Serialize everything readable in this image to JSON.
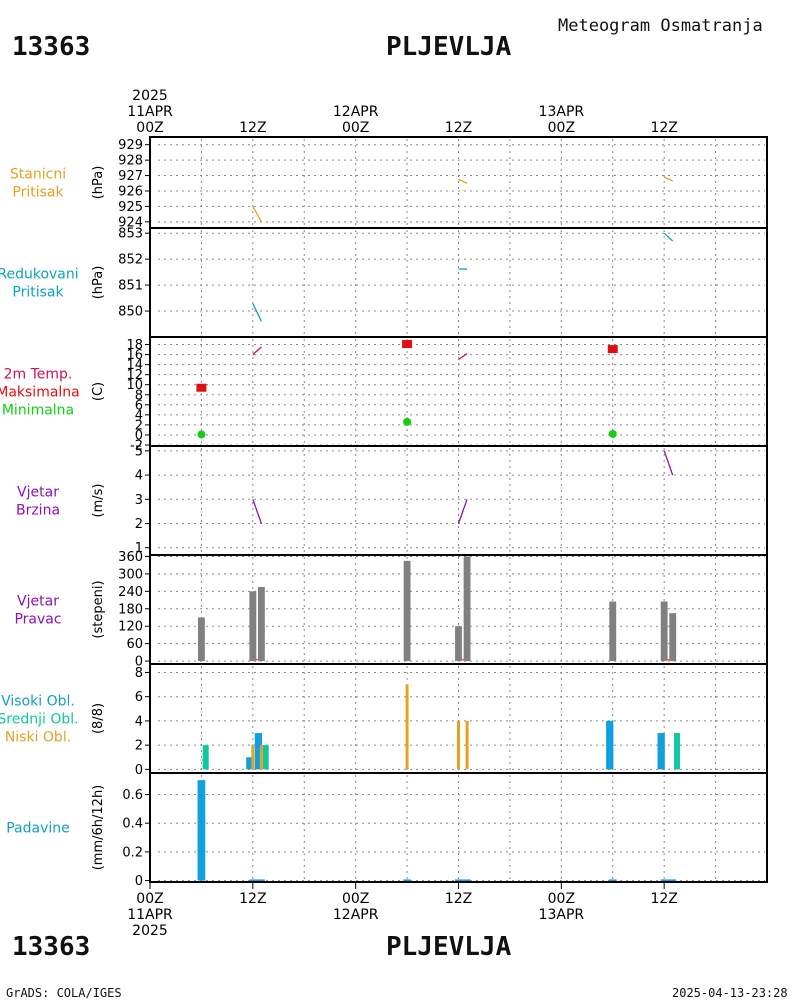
{
  "header": {
    "station_id": "13363",
    "station_name": "PLJEVLJA",
    "product": "Meteogram Osmatranja",
    "footer_left": "GrADS: COLA/IGES",
    "footer_right": "2025-04-13-23:28"
  },
  "colors": {
    "orange": "#e8a020",
    "cyan": "#10a0c0",
    "crimson": "#d01050",
    "red": "#e01010",
    "green": "#10d010",
    "purple": "#9010b0",
    "gray": "#808080",
    "blue": "#10a0e0",
    "teal": "#10c8a0",
    "cloud_orange": "#e8a020"
  },
  "time_axis": {
    "start_hour": 0,
    "end_hour": 72,
    "top_labels": [
      {
        "hour": 0,
        "lines": [
          "2025",
          "11APR",
          "00Z"
        ]
      },
      {
        "hour": 12,
        "lines": [
          "12Z"
        ]
      },
      {
        "hour": 24,
        "lines": [
          "12APR",
          "00Z"
        ]
      },
      {
        "hour": 36,
        "lines": [
          "12Z"
        ]
      },
      {
        "hour": 48,
        "lines": [
          "13APR",
          "00Z"
        ]
      },
      {
        "hour": 60,
        "lines": [
          "12Z"
        ]
      }
    ],
    "bottom_labels": [
      {
        "hour": 0,
        "lines": [
          "00Z",
          "11APR",
          "2025"
        ]
      },
      {
        "hour": 12,
        "lines": [
          "12Z"
        ]
      },
      {
        "hour": 24,
        "lines": [
          "00Z",
          "12APR"
        ]
      },
      {
        "hour": 36,
        "lines": [
          "12Z"
        ]
      },
      {
        "hour": 48,
        "lines": [
          "00Z",
          "13APR"
        ]
      },
      {
        "hour": 60,
        "lines": [
          "12Z"
        ]
      }
    ]
  },
  "chart_data": [
    {
      "id": "stanicni-pritisak",
      "type": "line",
      "left_labels": [
        {
          "text": "Stanicni",
          "color": "#e8a020"
        },
        {
          "text": "Pritisak",
          "color": "#e8a020"
        }
      ],
      "ylabel": "(hPa)",
      "ylim": [
        923.6,
        929.5
      ],
      "yticks": [
        924,
        925,
        926,
        927,
        928,
        929
      ],
      "series": [
        {
          "color": "#e8a020",
          "segments": [
            [
              [
                12,
                925.0
              ],
              [
                13,
                924.0
              ]
            ],
            [
              [
                36,
                926.75
              ],
              [
                37,
                926.5
              ]
            ],
            [
              [
                60,
                926.9
              ],
              [
                61,
                926.65
              ]
            ]
          ]
        }
      ]
    },
    {
      "id": "redukovani-pritisak",
      "type": "line",
      "left_labels": [
        {
          "text": "Redukovani",
          "color": "#10a0c0"
        },
        {
          "text": "Pritisak",
          "color": "#10a0c0"
        }
      ],
      "ylabel": "(hPa)",
      "ylim": [
        849.0,
        853.2
      ],
      "yticks": [
        850,
        851,
        852,
        853
      ],
      "series": [
        {
          "color": "#10a0c0",
          "segments": [
            [
              [
                12,
                850.3
              ],
              [
                13,
                849.6
              ]
            ],
            [
              [
                36,
                851.62
              ],
              [
                37,
                851.62
              ]
            ],
            [
              [
                60,
                853.0
              ],
              [
                61,
                852.7
              ]
            ]
          ]
        }
      ]
    },
    {
      "id": "temperatura",
      "type": "line",
      "left_labels": [
        {
          "text": "2m Temp.",
          "color": "#d01050"
        },
        {
          "text": "Maksimalna",
          "color": "#e01010"
        },
        {
          "text": "Minimalna",
          "color": "#10d010"
        }
      ],
      "ylabel": "(C)",
      "ylim": [
        -2.2,
        19.5
      ],
      "yticks": [
        -2,
        0,
        2,
        4,
        6,
        8,
        10,
        12,
        14,
        16,
        18
      ],
      "ytick_labels": [
        "-2",
        "0",
        "2",
        "4",
        "6",
        "8",
        "10",
        "12",
        "14",
        "16",
        "18"
      ],
      "series": [
        {
          "name": "2m Temp.",
          "color": "#d01050",
          "segments": [
            [
              [
                12,
                16.0
              ],
              [
                13,
                17.5
              ]
            ],
            [
              [
                36,
                15.0
              ],
              [
                37,
                16.2
              ]
            ]
          ]
        }
      ],
      "maxima": {
        "color": "#e01010",
        "points": [
          [
            6,
            9.4
          ],
          [
            30,
            18.1
          ],
          [
            54,
            17.1
          ]
        ]
      },
      "minima": {
        "color": "#10d010",
        "points": [
          [
            6,
            0.1
          ],
          [
            30,
            2.6
          ],
          [
            54,
            0.2
          ]
        ]
      }
    },
    {
      "id": "vjetar-brzina",
      "type": "line",
      "left_labels": [
        {
          "text": "Vjetar",
          "color": "#9010b0"
        },
        {
          "text": "Brzina",
          "color": "#9010b0"
        }
      ],
      "ylabel": "(m/s)",
      "ylim": [
        0.7,
        5.2
      ],
      "yticks": [
        1,
        2,
        3,
        4,
        5
      ],
      "series": [
        {
          "color": "#9010b0",
          "segments": [
            [
              [
                12,
                3.0
              ],
              [
                13,
                2.0
              ]
            ],
            [
              [
                36,
                2.0
              ],
              [
                37,
                3.0
              ]
            ],
            [
              [
                60,
                5.0
              ],
              [
                61,
                4.0
              ]
            ]
          ]
        }
      ]
    },
    {
      "id": "vjetar-pravac",
      "type": "bar",
      "left_labels": [
        {
          "text": "Vjetar",
          "color": "#9010b0"
        },
        {
          "text": "Pravac",
          "color": "#9010b0"
        }
      ],
      "ylabel": "(stepeni)",
      "ylim": [
        -10,
        365
      ],
      "yticks": [
        0,
        60,
        120,
        180,
        240,
        300,
        360
      ],
      "bar_color": "#808080",
      "bars": [
        {
          "hour": 6,
          "value": 150
        },
        {
          "hour": 12,
          "value": 240
        },
        {
          "hour": 13,
          "value": 255
        },
        {
          "hour": 30,
          "value": 345
        },
        {
          "hour": 36,
          "value": 120
        },
        {
          "hour": 37,
          "value": 360
        },
        {
          "hour": 54,
          "value": 205
        },
        {
          "hour": 60,
          "value": 205
        },
        {
          "hour": 61,
          "value": 165
        }
      ],
      "speed_marks": {
        "color": "#e06060",
        "hours": [
          12.5,
          36.5,
          60.5
        ],
        "value": 5
      }
    },
    {
      "id": "oblacnost",
      "type": "bar",
      "left_labels": [
        {
          "text": "Visoki Obl.",
          "color": "#10a0c0"
        },
        {
          "text": "Srednji Obl.",
          "color": "#10c8a0"
        },
        {
          "text": "Niski Obl.",
          "color": "#e8a020"
        }
      ],
      "ylabel": "(8/8)",
      "ylim": [
        -0.3,
        8.7
      ],
      "yticks": [
        0,
        2,
        4,
        6,
        8
      ],
      "series": [
        {
          "name": "Visoki Obl.",
          "color": "#10a0e0",
          "offset": -0.35,
          "width": 0.85,
          "points": [
            [
              12,
              1
            ],
            [
              13,
              3
            ],
            [
              54,
              4
            ],
            [
              60,
              3
            ]
          ]
        },
        {
          "name": "Srednji Obl.",
          "color": "#10c8a0",
          "offset": 0.5,
          "width": 0.7,
          "points": [
            [
              6,
              2
            ],
            [
              13,
              2
            ],
            [
              61,
              3
            ]
          ]
        },
        {
          "name": "Niski Obl.",
          "color": "#e8a020",
          "offset": 0.0,
          "width": 0.35,
          "points": [
            [
              12,
              2
            ],
            [
              13,
              2
            ],
            [
              30,
              7
            ],
            [
              36,
              4
            ],
            [
              37,
              4
            ]
          ]
        }
      ]
    },
    {
      "id": "padavine",
      "type": "bar",
      "left_labels": [
        {
          "text": "Padavine",
          "color": "#10a0c0"
        }
      ],
      "ylabel": "(mm/6h/12h)",
      "ylim": [
        -0.01,
        0.75
      ],
      "yticks": [
        0,
        0.2,
        0.4,
        0.6
      ],
      "ytick_labels": [
        "0",
        "0.2",
        "0.4",
        "0.6"
      ],
      "bar_color": "#10a0e0",
      "bars": [
        {
          "hour": 6,
          "value": 0.7,
          "width": 0.9
        },
        {
          "hour": 12.5,
          "value": 0.008,
          "width": 1.8
        },
        {
          "hour": 30,
          "value": 0.008,
          "width": 0.9
        },
        {
          "hour": 36.5,
          "value": 0.008,
          "width": 1.8
        },
        {
          "hour": 54,
          "value": 0.008,
          "width": 0.9
        },
        {
          "hour": 60.5,
          "value": 0.008,
          "width": 1.8
        }
      ]
    }
  ]
}
